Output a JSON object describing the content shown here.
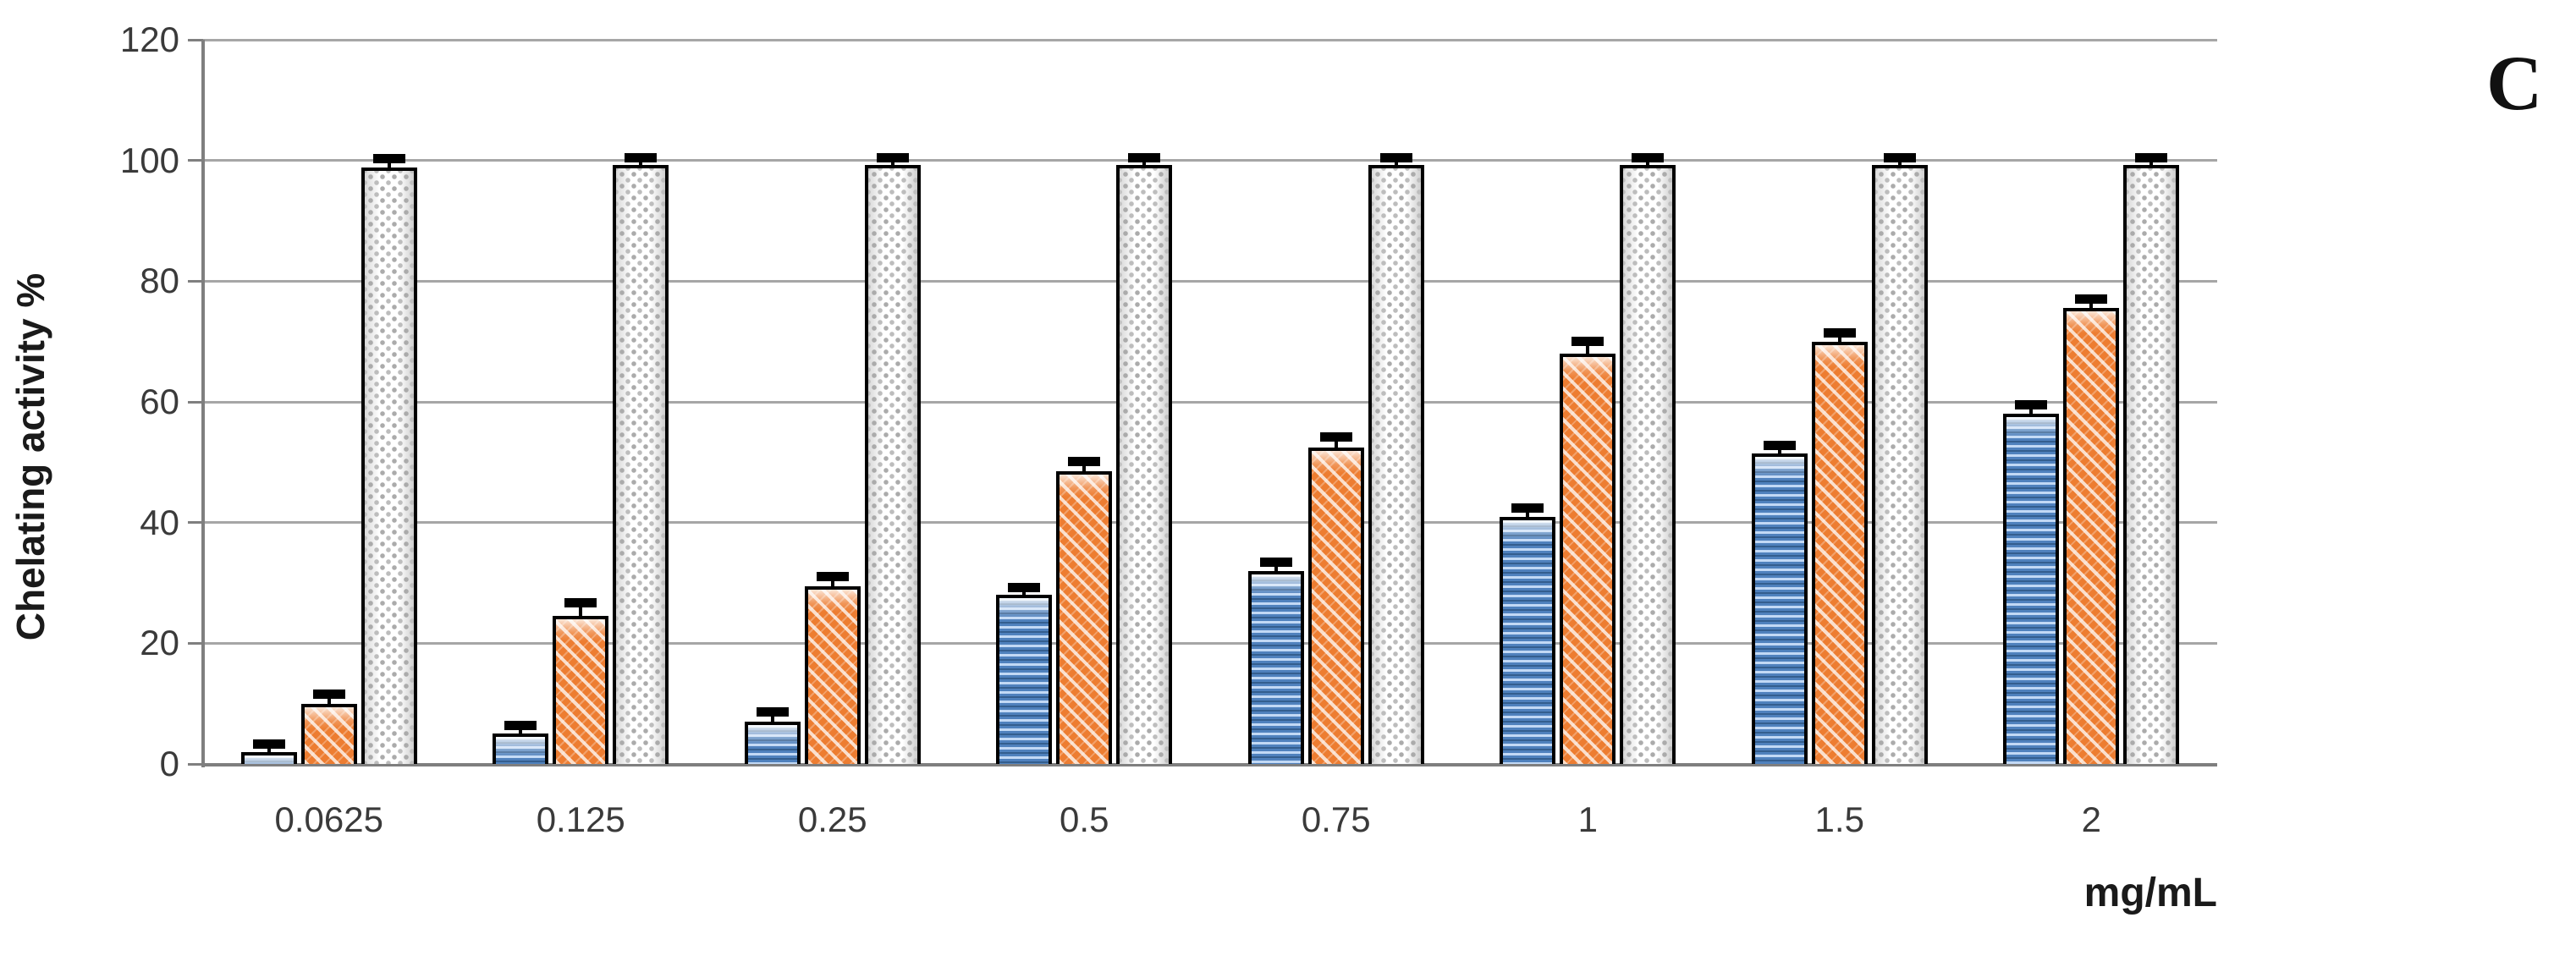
{
  "panel_label": "C",
  "chart_data": {
    "type": "bar",
    "title": "",
    "ylabel": "Chelating activity %",
    "xlabel": "mg/mL",
    "ylim": [
      0,
      120
    ],
    "yticks": [
      0,
      20,
      40,
      60,
      80,
      100,
      120
    ],
    "grid": true,
    "legend": "none",
    "categories": [
      "0.0625",
      "0.125",
      "0.25",
      "0.5",
      "0.75",
      "1",
      "1.5",
      "2"
    ],
    "series": [
      {
        "name": "blue-horizontal-stripe-bars",
        "color": "#4f81bd",
        "pattern": "horizontal-stripes",
        "values": [
          2,
          5,
          7,
          28,
          32,
          41,
          51.5,
          58
        ],
        "errors": [
          0.5,
          0.6,
          0.8,
          0.4,
          0.7,
          0.6,
          0.5,
          0.8
        ]
      },
      {
        "name": "orange-diagonal-stripe-bars",
        "color": "#ed7d31",
        "pattern": "diagonal-stripes",
        "values": [
          10,
          24.5,
          29.5,
          48.5,
          52.5,
          68,
          70,
          75.5
        ],
        "errors": [
          0.8,
          1.4,
          0.8,
          0.8,
          0.9,
          1.2,
          0.6,
          0.8
        ]
      },
      {
        "name": "gray-dotted-control-bars",
        "color": "#f5f5f5",
        "pattern": "dots",
        "values": [
          98.8,
          99.3,
          99.3,
          99.3,
          99.3,
          99.3,
          99.3,
          99.3
        ],
        "errors": [
          0.7,
          0.4,
          0.4,
          0.4,
          0.4,
          0.4,
          0.4,
          0.4
        ]
      }
    ],
    "axis_colors": {
      "gridline": "#a6a6a6",
      "axis": "#7f7f7f",
      "bar_border": "#000000"
    }
  }
}
